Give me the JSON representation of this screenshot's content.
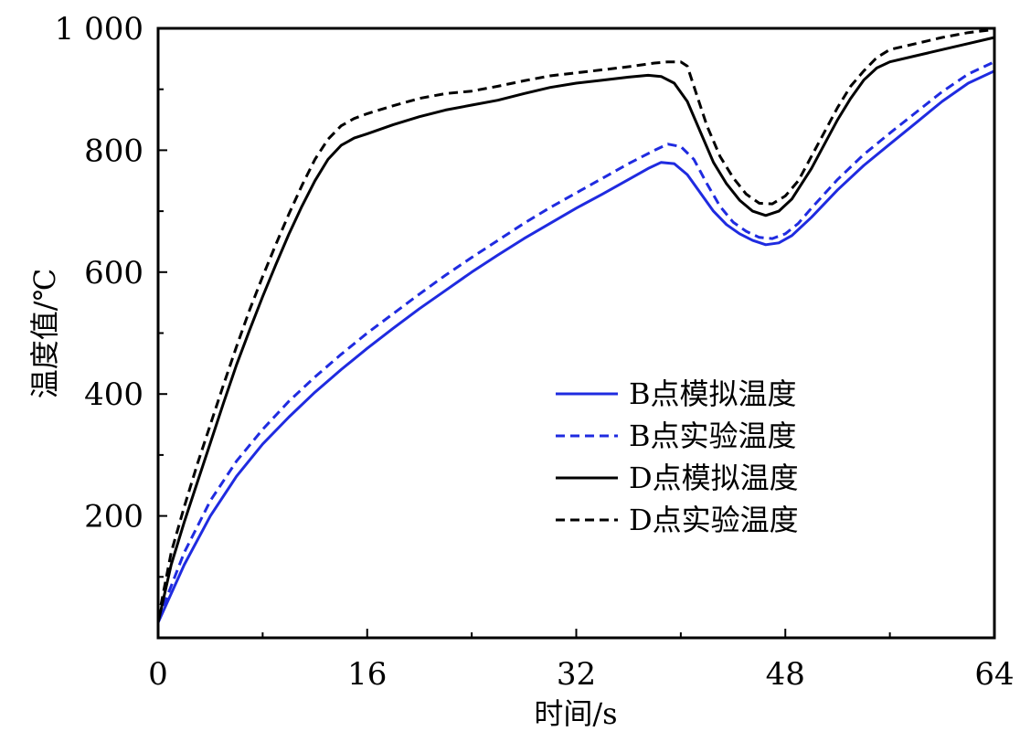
{
  "chart_data": {
    "type": "line",
    "title": "",
    "xlabel": "时间/s",
    "ylabel": "温度值/℃",
    "xlim": [
      0,
      64
    ],
    "ylim": [
      0,
      1000
    ],
    "x_ticks": [
      0,
      16,
      32,
      48,
      64
    ],
    "x_tick_labels": [
      "0",
      "16",
      "32",
      "48",
      "64"
    ],
    "y_ticks": [
      200,
      400,
      600,
      800,
      1000
    ],
    "y_tick_labels": [
      "200",
      "400",
      "600",
      "800",
      "1 000"
    ],
    "grid": false,
    "legend_position": "center-right",
    "series": [
      {
        "name": "B点模拟温度",
        "color": "#1f2be0",
        "dash": "solid",
        "points": [
          [
            0,
            25
          ],
          [
            2,
            120
          ],
          [
            4,
            200
          ],
          [
            6,
            265
          ],
          [
            8,
            318
          ],
          [
            10,
            362
          ],
          [
            12,
            403
          ],
          [
            14,
            440
          ],
          [
            16,
            475
          ],
          [
            18,
            508
          ],
          [
            20,
            540
          ],
          [
            22,
            570
          ],
          [
            24,
            600
          ],
          [
            26,
            628
          ],
          [
            28,
            655
          ],
          [
            30,
            680
          ],
          [
            32,
            705
          ],
          [
            34,
            728
          ],
          [
            36,
            752
          ],
          [
            37.5,
            770
          ],
          [
            38.5,
            780
          ],
          [
            39.5,
            778
          ],
          [
            40.5,
            760
          ],
          [
            41.5,
            730
          ],
          [
            42.5,
            700
          ],
          [
            43.5,
            678
          ],
          [
            44.5,
            663
          ],
          [
            45.5,
            652
          ],
          [
            46.5,
            645
          ],
          [
            47.5,
            648
          ],
          [
            48.5,
            660
          ],
          [
            50,
            690
          ],
          [
            52,
            735
          ],
          [
            54,
            775
          ],
          [
            56,
            810
          ],
          [
            58,
            845
          ],
          [
            60,
            880
          ],
          [
            62,
            910
          ],
          [
            64,
            930
          ]
        ]
      },
      {
        "name": "B点实验温度",
        "color": "#1f2be0",
        "dash": "dashed",
        "points": [
          [
            0,
            30
          ],
          [
            2,
            140
          ],
          [
            4,
            225
          ],
          [
            6,
            290
          ],
          [
            8,
            342
          ],
          [
            10,
            388
          ],
          [
            12,
            428
          ],
          [
            14,
            465
          ],
          [
            16,
            500
          ],
          [
            18,
            532
          ],
          [
            20,
            564
          ],
          [
            22,
            595
          ],
          [
            24,
            624
          ],
          [
            26,
            652
          ],
          [
            28,
            680
          ],
          [
            30,
            706
          ],
          [
            32,
            730
          ],
          [
            34,
            754
          ],
          [
            36,
            778
          ],
          [
            38,
            800
          ],
          [
            39,
            810
          ],
          [
            40,
            806
          ],
          [
            41,
            785
          ],
          [
            42,
            745
          ],
          [
            43,
            708
          ],
          [
            44,
            682
          ],
          [
            45,
            667
          ],
          [
            46,
            657
          ],
          [
            47,
            655
          ],
          [
            48,
            663
          ],
          [
            49,
            680
          ],
          [
            50,
            705
          ],
          [
            52,
            752
          ],
          [
            54,
            793
          ],
          [
            56,
            828
          ],
          [
            58,
            862
          ],
          [
            60,
            896
          ],
          [
            62,
            925
          ],
          [
            64,
            945
          ]
        ]
      },
      {
        "name": "D点模拟温度",
        "color": "#000000",
        "dash": "solid",
        "points": [
          [
            0,
            25
          ],
          [
            1,
            120
          ],
          [
            2,
            190
          ],
          [
            3,
            255
          ],
          [
            4,
            320
          ],
          [
            5,
            385
          ],
          [
            6,
            448
          ],
          [
            7,
            505
          ],
          [
            8,
            560
          ],
          [
            9,
            612
          ],
          [
            10,
            662
          ],
          [
            11,
            708
          ],
          [
            12,
            750
          ],
          [
            13,
            785
          ],
          [
            14,
            808
          ],
          [
            15,
            820
          ],
          [
            16,
            827
          ],
          [
            18,
            842
          ],
          [
            20,
            855
          ],
          [
            22,
            866
          ],
          [
            24,
            874
          ],
          [
            26,
            882
          ],
          [
            28,
            893
          ],
          [
            30,
            903
          ],
          [
            32,
            910
          ],
          [
            34,
            915
          ],
          [
            36,
            920
          ],
          [
            37.5,
            923
          ],
          [
            38.5,
            921
          ],
          [
            39.5,
            910
          ],
          [
            40.5,
            880
          ],
          [
            41.5,
            830
          ],
          [
            42.5,
            780
          ],
          [
            43.5,
            745
          ],
          [
            44.5,
            718
          ],
          [
            45.5,
            700
          ],
          [
            46.5,
            693
          ],
          [
            47.5,
            700
          ],
          [
            48.5,
            720
          ],
          [
            50,
            770
          ],
          [
            51,
            810
          ],
          [
            52,
            850
          ],
          [
            53,
            885
          ],
          [
            54,
            915
          ],
          [
            55,
            935
          ],
          [
            56,
            945
          ],
          [
            58,
            955
          ],
          [
            60,
            965
          ],
          [
            62,
            975
          ],
          [
            64,
            985
          ]
        ]
      },
      {
        "name": "D点实验温度",
        "color": "#000000",
        "dash": "dashed",
        "points": [
          [
            0,
            30
          ],
          [
            1,
            140
          ],
          [
            2,
            215
          ],
          [
            3,
            285
          ],
          [
            4,
            350
          ],
          [
            5,
            415
          ],
          [
            6,
            478
          ],
          [
            7,
            538
          ],
          [
            8,
            593
          ],
          [
            9,
            645
          ],
          [
            10,
            695
          ],
          [
            11,
            742
          ],
          [
            12,
            785
          ],
          [
            13,
            818
          ],
          [
            14,
            840
          ],
          [
            15,
            852
          ],
          [
            16,
            860
          ],
          [
            18,
            873
          ],
          [
            20,
            885
          ],
          [
            22,
            893
          ],
          [
            24,
            897
          ],
          [
            26,
            905
          ],
          [
            28,
            914
          ],
          [
            30,
            922
          ],
          [
            32,
            927
          ],
          [
            34,
            932
          ],
          [
            36,
            937
          ],
          [
            38,
            943
          ],
          [
            39,
            945
          ],
          [
            40,
            945
          ],
          [
            40.5,
            938
          ],
          [
            41,
            905
          ],
          [
            42,
            840
          ],
          [
            43,
            790
          ],
          [
            44,
            755
          ],
          [
            45,
            728
          ],
          [
            46,
            713
          ],
          [
            47,
            712
          ],
          [
            48,
            725
          ],
          [
            49,
            750
          ],
          [
            50,
            790
          ],
          [
            51,
            830
          ],
          [
            52,
            870
          ],
          [
            53,
            905
          ],
          [
            54,
            930
          ],
          [
            55,
            952
          ],
          [
            56,
            965
          ],
          [
            58,
            975
          ],
          [
            60,
            985
          ],
          [
            62,
            993
          ],
          [
            64,
            998
          ]
        ]
      }
    ]
  }
}
